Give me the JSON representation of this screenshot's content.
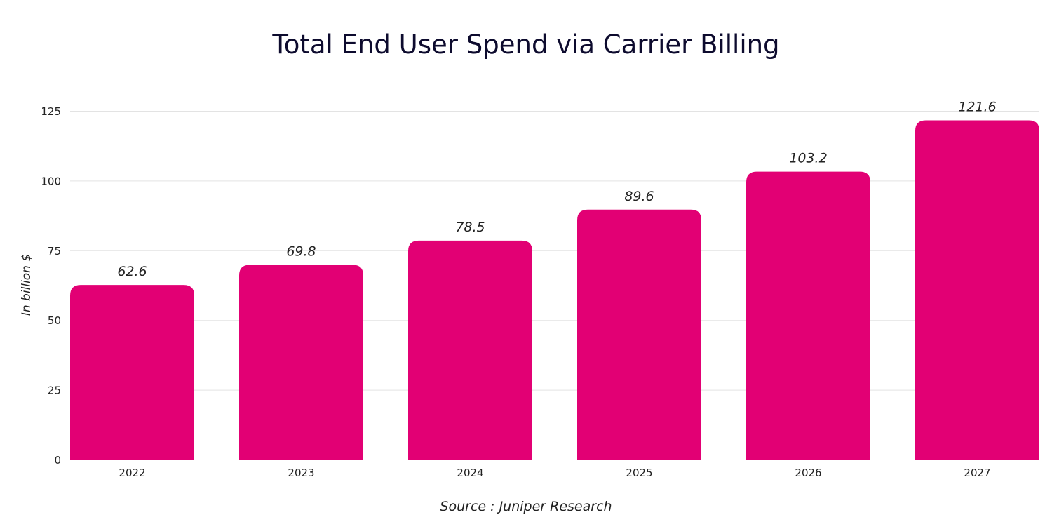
{
  "chart_data": {
    "type": "bar",
    "title": "Total End User Spend via Carrier Billing",
    "ylabel": "In billion $",
    "xlabel": "",
    "source": "Source : Juniper Research",
    "categories": [
      "2022",
      "2023",
      "2024",
      "2025",
      "2026",
      "2027"
    ],
    "values": [
      62.6,
      69.8,
      78.5,
      89.6,
      103.2,
      121.6
    ],
    "data_labels": [
      "62.6",
      "69.8",
      "78.5",
      "89.6",
      "103.2",
      "121.6"
    ],
    "ylim": [
      0,
      125
    ],
    "yticks": [
      "0",
      "25",
      "50",
      "75",
      "100",
      "125"
    ],
    "grid": true,
    "legend": "none",
    "bar_color": "#E20074"
  }
}
